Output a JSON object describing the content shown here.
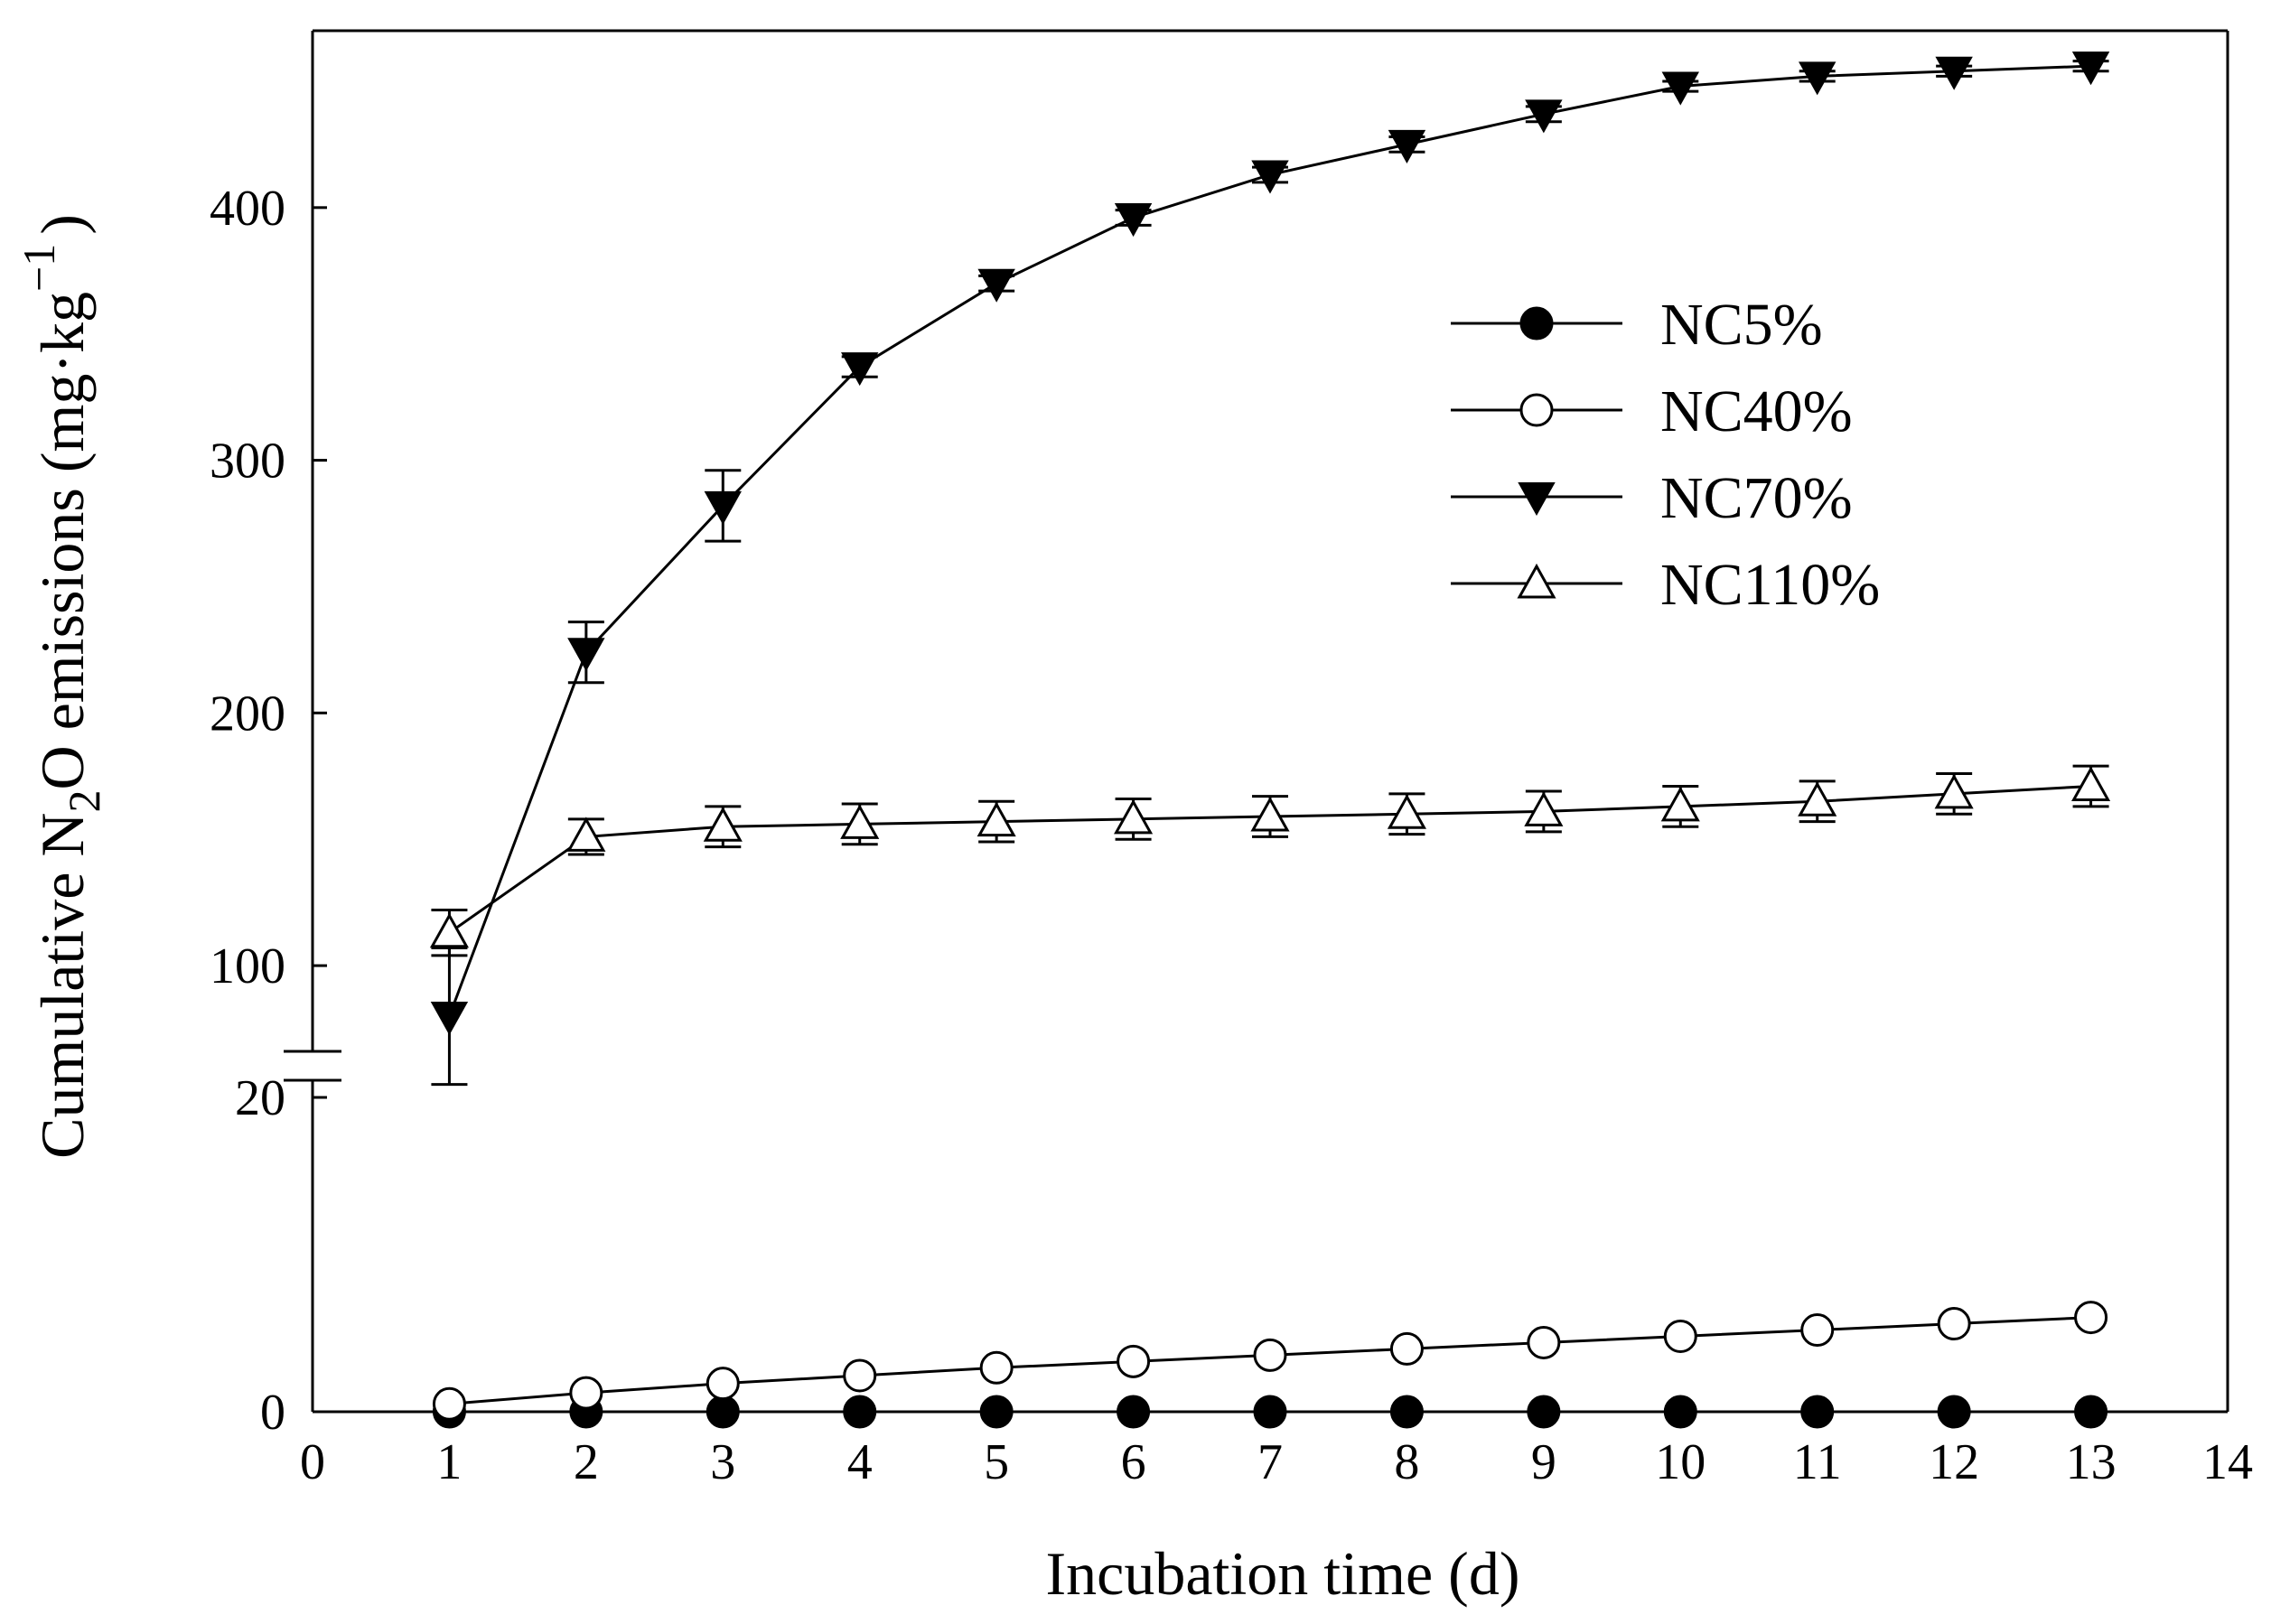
{
  "chart_data": {
    "type": "line",
    "xlabel": "Incubation time (d)",
    "ylabel": {
      "prefix": "Cumulative N",
      "sub": "2",
      "mid": "O emissions (mg·kg",
      "sup": "−1",
      "suffix": ")"
    },
    "xlim": [
      0,
      14
    ],
    "xticks": [
      0,
      1,
      2,
      3,
      4,
      5,
      6,
      7,
      8,
      9,
      10,
      11,
      12,
      13,
      14
    ],
    "y_break": {
      "lower_range": [
        0,
        20
      ],
      "upper_range": [
        65,
        470
      ],
      "lower_ticks": [
        0,
        20
      ],
      "upper_ticks": [
        100,
        200,
        300,
        400
      ]
    },
    "grid": false,
    "legend_position": "upper-right",
    "x": [
      1,
      2,
      3,
      4,
      5,
      6,
      7,
      8,
      9,
      10,
      11,
      12,
      13
    ],
    "series": [
      {
        "name": "NC5%",
        "marker": "filled-circle",
        "values": [
          0,
          0,
          0,
          0,
          0,
          0,
          0,
          0,
          0,
          0,
          0,
          0,
          0
        ],
        "errors": [
          0,
          0,
          0,
          0,
          0,
          0,
          0,
          0,
          0,
          0,
          0,
          0,
          0
        ]
      },
      {
        "name": "NC40%",
        "marker": "open-circle",
        "values": [
          0.5,
          1.2,
          1.8,
          2.3,
          2.8,
          3.2,
          3.6,
          4.0,
          4.4,
          4.8,
          5.2,
          5.6,
          6.0
        ],
        "errors": [
          0,
          0,
          0,
          0,
          0,
          0,
          0,
          0,
          0,
          0,
          0,
          0,
          0
        ]
      },
      {
        "name": "NC70%",
        "marker": "filled-triangle-down",
        "values": [
          80,
          224,
          282,
          337,
          370,
          396,
          413,
          425,
          437,
          448,
          452,
          454,
          456
        ],
        "errors": [
          27,
          12,
          14,
          4,
          3,
          3,
          3,
          3,
          3,
          2,
          2,
          2,
          2
        ]
      },
      {
        "name": "NC110%",
        "marker": "open-triangle-up",
        "values": [
          113,
          151,
          155,
          156,
          157,
          158,
          159,
          160,
          161,
          163,
          165,
          168,
          171
        ],
        "errors": [
          9,
          7,
          8,
          8,
          8,
          8,
          8,
          8,
          8,
          8,
          8,
          8,
          8
        ]
      }
    ]
  }
}
